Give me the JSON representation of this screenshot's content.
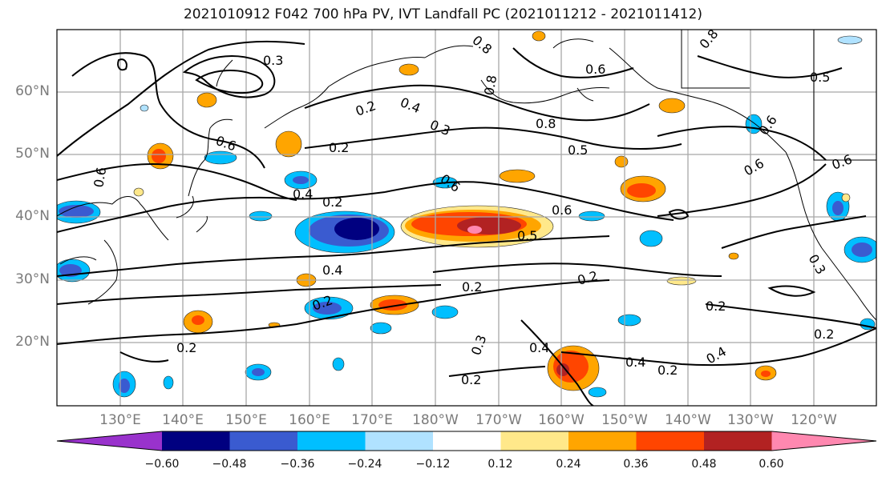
{
  "title": "2021010912 F042 700 hPa PV, IVT Landfall PC (2021011212 - 2021011412)",
  "lat_labels": [
    "60°N",
    "50°N",
    "40°N",
    "30°N",
    "20°N"
  ],
  "lon_labels": [
    "130°E",
    "140°E",
    "150°E",
    "160°E",
    "170°E",
    "180°W",
    "170°W",
    "160°W",
    "150°W",
    "140°W",
    "130°W",
    "120°W"
  ],
  "colorbar": {
    "ticks": [
      "−0.60",
      "−0.48",
      "−0.36",
      "−0.24",
      "−0.12",
      "0.12",
      "0.24",
      "0.36",
      "0.48",
      "0.60"
    ],
    "colors": [
      "#9932cc",
      "#000080",
      "#3a5bd0",
      "#00bfff",
      "#b0e2ff",
      "#ffffff",
      "#ffe88a",
      "#ffa500",
      "#ff4500",
      "#b22222",
      "#ff88b0"
    ]
  },
  "contour_labels": [
    "0.3",
    "0.6",
    "0.2",
    "0.4",
    "0.3",
    "0.8",
    "0.6",
    "0.8",
    "0.5",
    "0.6",
    "0.2",
    "0.6",
    "0.4",
    "0.2",
    "0.6",
    "0.5",
    "0.4",
    "0.2",
    "0.2",
    "0.2",
    "0.2",
    "0.2",
    "0.4",
    "0.3",
    "0.4",
    "0.2",
    "0.2",
    "0.2",
    "0.6",
    "0.6",
    "0.8",
    "0.5",
    "0.3",
    "0.8",
    "0.6",
    "0.4"
  ]
}
